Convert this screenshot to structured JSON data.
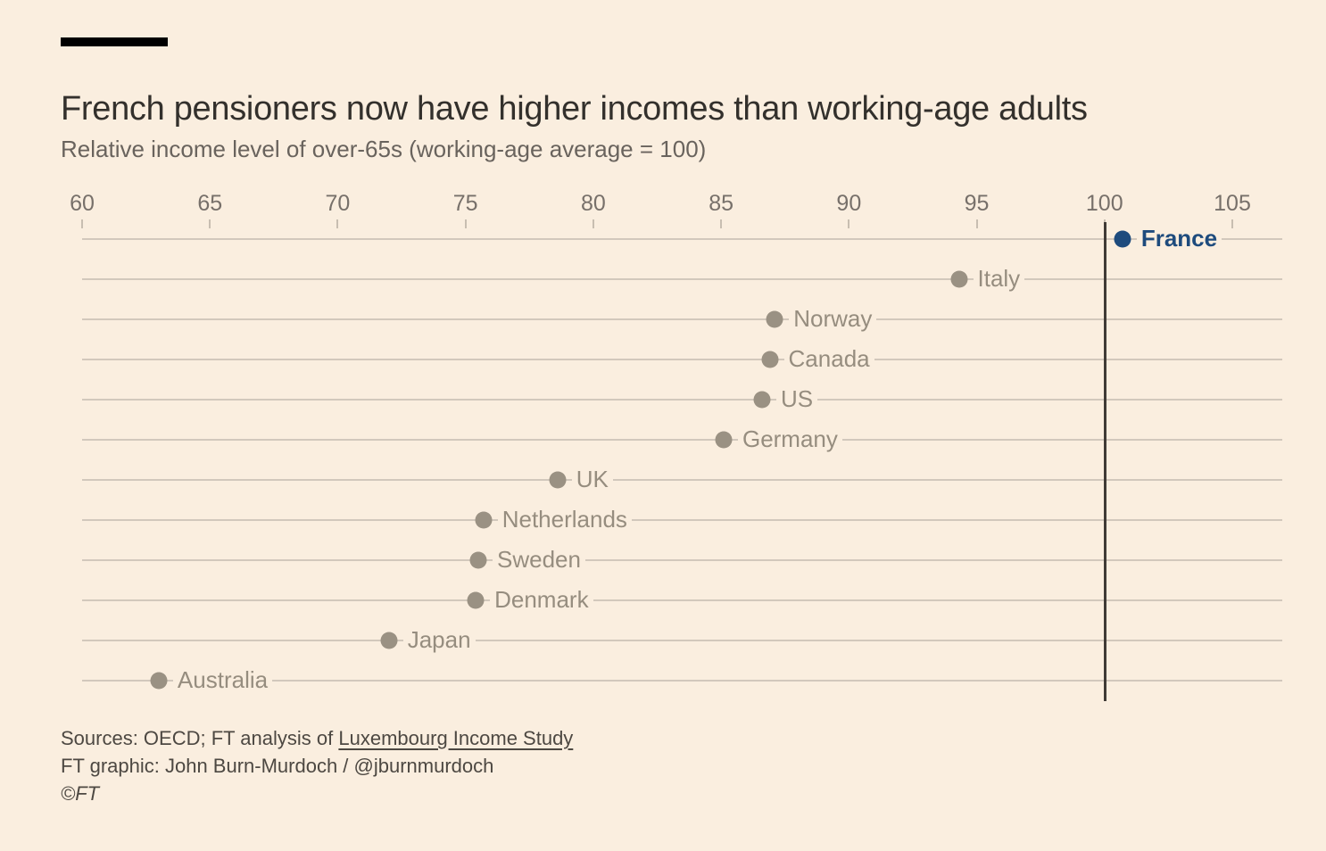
{
  "header": {
    "title": "French pensioners now have higher incomes than working-age adults",
    "subtitle": "Relative income level of over-65s (working-age average = 100)"
  },
  "chart_data": {
    "type": "scatter",
    "title": "French pensioners now have higher incomes than working-age adults",
    "subtitle": "Relative income level of over-65s (working-age average = 100)",
    "xlabel": "",
    "ylabel": "",
    "xlim": [
      60,
      105
    ],
    "x_ticks": [
      "60",
      "65",
      "70",
      "75",
      "80",
      "85",
      "90",
      "95",
      "100",
      "105"
    ],
    "grid": "horizontal-row-lines",
    "reference_line_x": 100,
    "legend_position": "none",
    "points": [
      {
        "label": "France",
        "value": 100.7,
        "highlight": true
      },
      {
        "label": "Italy",
        "value": 94.3,
        "highlight": false
      },
      {
        "label": "Norway",
        "value": 87.1,
        "highlight": false
      },
      {
        "label": "Canada",
        "value": 86.9,
        "highlight": false
      },
      {
        "label": "US",
        "value": 86.6,
        "highlight": false
      },
      {
        "label": "Germany",
        "value": 85.1,
        "highlight": false
      },
      {
        "label": "UK",
        "value": 78.6,
        "highlight": false
      },
      {
        "label": "Netherlands",
        "value": 75.7,
        "highlight": false
      },
      {
        "label": "Sweden",
        "value": 75.5,
        "highlight": false
      },
      {
        "label": "Denmark",
        "value": 75.4,
        "highlight": false
      },
      {
        "label": "Japan",
        "value": 72.0,
        "highlight": false
      },
      {
        "label": "Australia",
        "value": 63.0,
        "highlight": false
      }
    ]
  },
  "colors": {
    "background": "#faeedf",
    "highlight_blue": "#1e4b7d",
    "dot_grey": "#9a9183",
    "label_grey": "#968d7f",
    "gridline": "#d2c8bc",
    "reference_line": "#403b36",
    "title_text": "#33302c",
    "subtitle_text": "#69635d"
  },
  "footer": {
    "sources_prefix": "Sources: OECD; FT analysis of ",
    "sources_link": "Luxembourg Income Study",
    "credit": "FT graphic: John Burn-Murdoch / @jburnmurdoch",
    "copyright": "©FT"
  }
}
